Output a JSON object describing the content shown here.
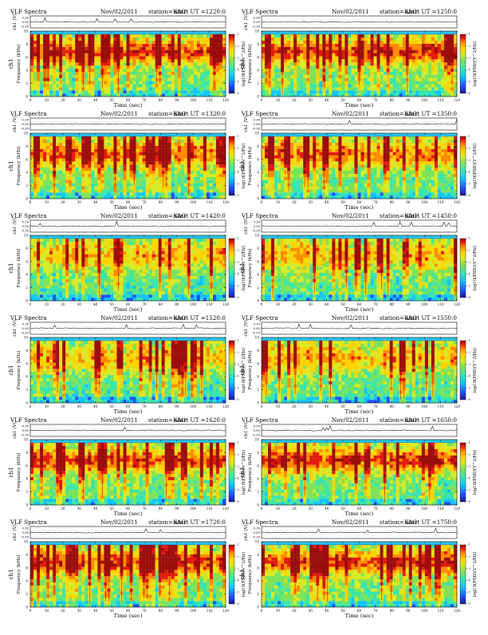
{
  "page_header": "VLF Spectra",
  "date": "Nov/02/2011",
  "station": "station=KAG",
  "start_prefix": "start  UT  =",
  "time_label": "Time  (sec)",
  "voltage_label": "ch1 (V)",
  "channel_label": "ch1",
  "freq_label": "Frequency  (kHz)",
  "colorbar_label": "log10(PSD)(V^2/Hz)",
  "chart_data": [
    {
      "type": "heatmap",
      "start_ut": "1220:0",
      "variant": "a"
    },
    {
      "type": "heatmap",
      "start_ut": "1250:0",
      "variant": "a"
    },
    {
      "type": "heatmap",
      "start_ut": "1320:0",
      "variant": "b"
    },
    {
      "type": "heatmap",
      "start_ut": "1350:0",
      "variant": "b"
    },
    {
      "type": "heatmap",
      "start_ut": "1420:0",
      "variant": "c"
    },
    {
      "type": "heatmap",
      "start_ut": "1450:0",
      "variant": "c"
    },
    {
      "type": "heatmap",
      "start_ut": "1520:0",
      "variant": "c"
    },
    {
      "type": "heatmap",
      "start_ut": "1550:0",
      "variant": "c"
    },
    {
      "type": "heatmap",
      "start_ut": "1620:0",
      "variant": "a"
    },
    {
      "type": "heatmap",
      "start_ut": "1650:0",
      "variant": "a"
    },
    {
      "type": "heatmap",
      "start_ut": "1720:0",
      "variant": "a"
    },
    {
      "type": "heatmap",
      "start_ut": "1750:0",
      "variant": "a"
    }
  ],
  "axes": {
    "x_ticks": [
      "0",
      "10",
      "20",
      "30",
      "40",
      "50",
      "60",
      "70",
      "80",
      "90",
      "100",
      "110",
      "120"
    ],
    "x_range": [
      0,
      120
    ],
    "y_ticks": [
      "0",
      "2",
      "4",
      "6",
      "8",
      "10"
    ],
    "y_range": [
      0,
      10
    ],
    "v_ticks": [
      "-0.30",
      "0.00",
      "0.30"
    ],
    "cb_ticks": [
      "-1",
      "-2",
      "-3",
      "-4",
      "-5",
      "-6"
    ]
  },
  "colors": {
    "scale": [
      "#1a1a8c",
      "#1f4fff",
      "#13c3ff",
      "#38e5ad",
      "#7ce35a",
      "#d6ea26",
      "#ffd200",
      "#ff8a00",
      "#e31a0e",
      "#9b0d0b"
    ],
    "noise_band": "#2bc8ec",
    "grid": "#888888"
  }
}
